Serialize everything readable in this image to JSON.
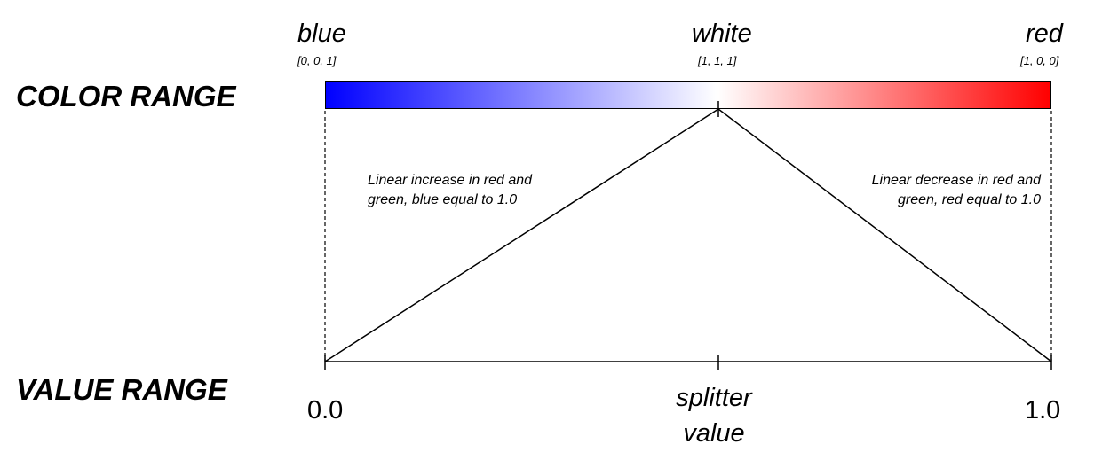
{
  "labels": {
    "color_range": "COLOR RANGE",
    "value_range": "VALUE RANGE"
  },
  "colors": [
    {
      "name": "blue",
      "rgb": "[0, 0, 1]",
      "hex": "#0000ff"
    },
    {
      "name": "white",
      "rgb": "[1, 1, 1]",
      "hex": "#ffffff"
    },
    {
      "name": "red",
      "rgb": "[1, 0, 0]",
      "hex": "#ff0000"
    }
  ],
  "notes": {
    "left": "Linear increase in red and green, blue equal to 1.0",
    "right": "Linear decrease in red and green, red equal to 1.0"
  },
  "values": {
    "min": "0.0",
    "max": "1.0",
    "splitter_line1": "splitter",
    "splitter_line2": "value"
  }
}
